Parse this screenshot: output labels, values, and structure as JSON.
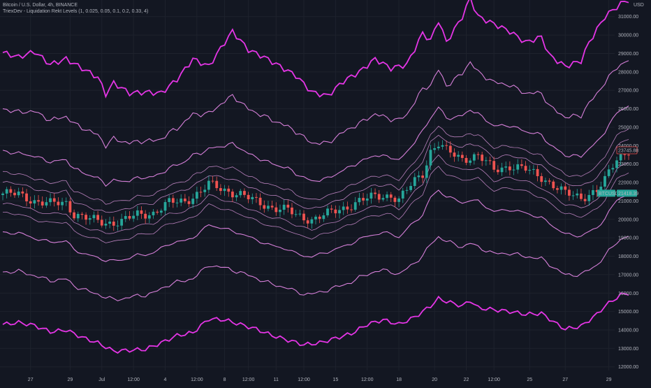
{
  "legend": {
    "symbol_line": "Bitcoin / U.S. Dollar, 4h, BINANCE",
    "indicator_line": "TriexDev - Liquidation Rekt Levels (1, 0.025, 0.05, 0.1, 0.2, 0.33, 4)"
  },
  "axis": {
    "currency": "USD",
    "y_ticks": [
      "31000.00",
      "30000.00",
      "29000.00",
      "28000.00",
      "27000.00",
      "26000.00",
      "25000.00",
      "24000.00",
      "23000.00",
      "22000.00",
      "21000.00",
      "20000.00",
      "19000.00",
      "18000.00",
      "17000.00",
      "16000.00",
      "15000.00",
      "14000.00",
      "13000.00",
      "12000.00"
    ],
    "x_ticks": [
      "27",
      "29",
      "Jul",
      "12:00",
      "4",
      "12:00",
      "8",
      "12:00",
      "11",
      "12:00",
      "15",
      "12:00",
      "18",
      "20",
      "22",
      "12:00",
      "25",
      "27",
      "29"
    ]
  },
  "price_labels": {
    "ticker": "BTCUSD",
    "current_price": "21418.39",
    "marker_price": "23745.88"
  },
  "colors": {
    "background": "#131722",
    "grid": "#1e222d",
    "up_candle": "#26a69a",
    "down_candle": "#ef5350",
    "outer_band": "#e535e6",
    "mid_band": "#d57fd8",
    "inner_band": "#b67fba",
    "axis_text": "#b2b5be",
    "ticker_bg": "#26a69a",
    "marker_border": "#ef5350"
  },
  "chart_data": {
    "type": "candlestick",
    "title": "Bitcoin / U.S. Dollar, 4h, BINANCE",
    "ylim": [
      11800,
      31900
    ],
    "grid": true,
    "x_ticks": [
      "27",
      "29",
      "Jul",
      "12:00",
      "4",
      "12:00",
      "8",
      "12:00",
      "11",
      "12:00",
      "15",
      "12:00",
      "18",
      "20",
      "22",
      "12:00",
      "25",
      "27",
      "29"
    ],
    "close_anchors": [
      [
        0,
        21400
      ],
      [
        4,
        21350
      ],
      [
        8,
        21000
      ],
      [
        12,
        20850
      ],
      [
        16,
        20900
      ],
      [
        18,
        20300
      ],
      [
        22,
        20000
      ],
      [
        26,
        19800
      ],
      [
        30,
        19900
      ],
      [
        34,
        20250
      ],
      [
        38,
        20350
      ],
      [
        42,
        20900
      ],
      [
        46,
        21000
      ],
      [
        50,
        21500
      ],
      [
        52,
        21900
      ],
      [
        56,
        21600
      ],
      [
        60,
        21350
      ],
      [
        64,
        20950
      ],
      [
        68,
        20650
      ],
      [
        72,
        20500
      ],
      [
        74,
        20200
      ],
      [
        78,
        20000
      ],
      [
        82,
        20300
      ],
      [
        86,
        20600
      ],
      [
        90,
        21000
      ],
      [
        94,
        21250
      ],
      [
        98,
        21300
      ],
      [
        100,
        21050
      ],
      [
        104,
        22100
      ],
      [
        106,
        22500
      ],
      [
        108,
        23700
      ],
      [
        110,
        24100
      ],
      [
        112,
        23700
      ],
      [
        116,
        23300
      ],
      [
        120,
        23450
      ],
      [
        124,
        22700
      ],
      [
        128,
        22900
      ],
      [
        132,
        22700
      ],
      [
        136,
        22300
      ],
      [
        138,
        22000
      ],
      [
        140,
        21700
      ],
      [
        142,
        21400
      ],
      [
        146,
        21200
      ],
      [
        150,
        21550
      ],
      [
        152,
        22100
      ],
      [
        155,
        23300
      ],
      [
        158,
        23750
      ]
    ],
    "bands": {
      "multipliers": [
        0.025,
        0.05,
        0.1,
        0.2,
        0.33
      ],
      "upper_outer_anchors": [
        [
          0,
          29050
        ],
        [
          4,
          28800
        ],
        [
          8,
          29100
        ],
        [
          12,
          28400
        ],
        [
          16,
          28700
        ],
        [
          20,
          28200
        ],
        [
          24,
          27700
        ],
        [
          26,
          26800
        ],
        [
          28,
          27400
        ],
        [
          32,
          26850
        ],
        [
          36,
          26900
        ],
        [
          40,
          26850
        ],
        [
          44,
          27600
        ],
        [
          48,
          28700
        ],
        [
          52,
          28300
        ],
        [
          56,
          29600
        ],
        [
          58,
          30200
        ],
        [
          62,
          29200
        ],
        [
          66,
          28800
        ],
        [
          70,
          28300
        ],
        [
          74,
          27800
        ],
        [
          78,
          26900
        ],
        [
          82,
          26700
        ],
        [
          86,
          27500
        ],
        [
          90,
          28000
        ],
        [
          94,
          28700
        ],
        [
          98,
          28200
        ],
        [
          102,
          28400
        ],
        [
          106,
          30100
        ],
        [
          108,
          29700
        ],
        [
          110,
          30800
        ],
        [
          112,
          29600
        ],
        [
          116,
          31000
        ],
        [
          118,
          32000
        ],
        [
          120,
          31000
        ],
        [
          124,
          30600
        ],
        [
          128,
          30200
        ],
        [
          132,
          29600
        ],
        [
          136,
          29900
        ],
        [
          138,
          28900
        ],
        [
          142,
          28300
        ],
        [
          146,
          28600
        ],
        [
          148,
          29600
        ],
        [
          152,
          31000
        ],
        [
          156,
          31700
        ],
        [
          158,
          31900
        ]
      ],
      "lower_outer_anchors": [
        [
          0,
          14300
        ],
        [
          4,
          14400
        ],
        [
          8,
          14250
        ],
        [
          12,
          13900
        ],
        [
          16,
          14000
        ],
        [
          20,
          13600
        ],
        [
          24,
          13300
        ],
        [
          28,
          12850
        ],
        [
          32,
          12900
        ],
        [
          36,
          12950
        ],
        [
          40,
          13300
        ],
        [
          44,
          13700
        ],
        [
          48,
          13850
        ],
        [
          52,
          14600
        ],
        [
          56,
          14550
        ],
        [
          60,
          14300
        ],
        [
          64,
          14050
        ],
        [
          68,
          13700
        ],
        [
          72,
          13450
        ],
        [
          76,
          13200
        ],
        [
          80,
          13300
        ],
        [
          84,
          13550
        ],
        [
          88,
          13800
        ],
        [
          92,
          14300
        ],
        [
          96,
          14550
        ],
        [
          100,
          14300
        ],
        [
          104,
          14700
        ],
        [
          108,
          15300
        ],
        [
          110,
          15700
        ],
        [
          112,
          15550
        ],
        [
          116,
          15300
        ],
        [
          118,
          15600
        ],
        [
          120,
          15200
        ],
        [
          124,
          15100
        ],
        [
          128,
          15000
        ],
        [
          132,
          14850
        ],
        [
          136,
          14900
        ],
        [
          140,
          14300
        ],
        [
          142,
          14050
        ],
        [
          146,
          14200
        ],
        [
          150,
          14850
        ],
        [
          152,
          15300
        ],
        [
          156,
          15900
        ],
        [
          158,
          16000
        ]
      ]
    }
  }
}
